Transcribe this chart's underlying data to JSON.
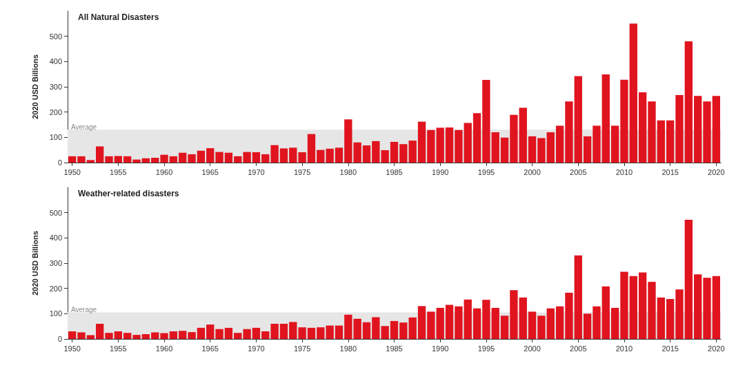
{
  "chart_data": [
    {
      "type": "bar",
      "title": "All Natural Disasters",
      "ylabel": "2020 USD Billions",
      "categories": [
        "1950",
        null,
        null,
        null,
        null,
        "1955",
        null,
        null,
        null,
        null,
        "1960",
        null,
        null,
        null,
        null,
        "1965",
        null,
        null,
        null,
        null,
        "1970",
        null,
        null,
        null,
        null,
        "1975",
        null,
        null,
        null,
        null,
        "1980",
        null,
        null,
        null,
        null,
        "1985",
        null,
        null,
        null,
        null,
        "1990",
        null,
        null,
        null,
        null,
        "1995",
        null,
        null,
        null,
        null,
        "2000",
        null,
        null,
        null,
        null,
        "2005",
        null,
        null,
        null,
        null,
        "2010",
        null,
        null,
        null,
        null,
        "2015",
        null,
        null,
        null,
        null,
        "2020"
      ],
      "values": [
        25,
        25,
        10,
        64,
        25,
        26,
        25,
        12,
        17,
        19,
        31,
        25,
        39,
        33,
        47,
        57,
        42,
        39,
        25,
        42,
        41,
        33,
        69,
        56,
        59,
        41,
        113,
        50,
        55,
        59,
        171,
        80,
        68,
        85,
        49,
        82,
        73,
        87,
        162,
        129,
        138,
        139,
        129,
        157,
        196,
        327,
        120,
        99,
        189,
        217,
        104,
        97,
        120,
        146,
        242,
        342,
        104,
        146,
        349,
        146,
        328,
        550,
        278,
        242,
        167,
        167,
        267,
        480,
        264,
        242,
        264
      ],
      "color": "#e0141e",
      "ylim": [
        0,
        600
      ],
      "yticks": [
        0,
        100,
        200,
        300,
        400,
        500
      ],
      "grid": false,
      "bands": [
        {
          "axis": "y",
          "from": 0,
          "to": 130,
          "label": "Average",
          "color": "#e6e6e6"
        }
      ]
    },
    {
      "type": "bar",
      "title": "Weather-related disasters",
      "ylabel": "2020 USD Billions",
      "categories": [
        "1950",
        null,
        null,
        null,
        null,
        "1955",
        null,
        null,
        null,
        null,
        "1960",
        null,
        null,
        null,
        null,
        "1965",
        null,
        null,
        null,
        null,
        "1970",
        null,
        null,
        null,
        null,
        "1975",
        null,
        null,
        null,
        null,
        "1980",
        null,
        null,
        null,
        null,
        "1985",
        null,
        null,
        null,
        null,
        "1990",
        null,
        null,
        null,
        null,
        "1995",
        null,
        null,
        null,
        null,
        "2000",
        null,
        null,
        null,
        null,
        "2005",
        null,
        null,
        null,
        null,
        "2010",
        null,
        null,
        null,
        null,
        "2015",
        null,
        null,
        null,
        null,
        "2020"
      ],
      "values": [
        30,
        26,
        15,
        60,
        24,
        30,
        24,
        16,
        19,
        26,
        23,
        30,
        32,
        27,
        44,
        57,
        39,
        44,
        24,
        39,
        44,
        30,
        60,
        60,
        67,
        46,
        44,
        46,
        53,
        53,
        96,
        80,
        66,
        86,
        51,
        71,
        65,
        85,
        130,
        108,
        123,
        135,
        129,
        156,
        121,
        155,
        123,
        92,
        193,
        164,
        108,
        92,
        121,
        129,
        183,
        331,
        100,
        129,
        208,
        123,
        266,
        249,
        263,
        226,
        164,
        158,
        196,
        472,
        256,
        242,
        249
      ],
      "color": "#e0141e",
      "ylim": [
        0,
        600
      ],
      "yticks": [
        0,
        100,
        200,
        300,
        400,
        500
      ],
      "grid": false,
      "bands": [
        {
          "axis": "y",
          "from": 0,
          "to": 105,
          "label": "Average",
          "color": "#e6e6e6"
        }
      ]
    }
  ]
}
